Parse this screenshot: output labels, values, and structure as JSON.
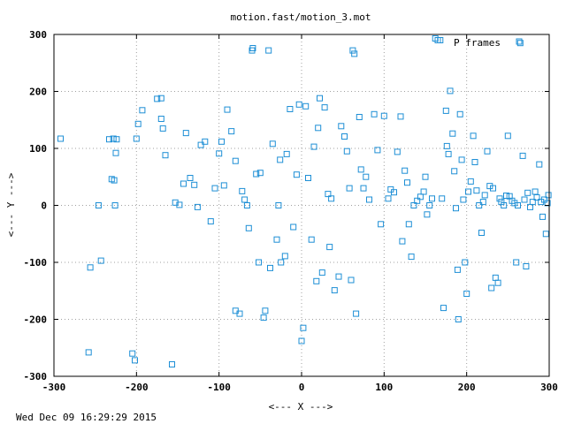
{
  "chart_data": {
    "type": "scatter",
    "title": "motion.fast/motion_3.mot",
    "xlabel": "<--- X --->",
    "ylabel": "<--- Y --->",
    "xlim": [
      -300,
      300
    ],
    "ylim": [
      -300,
      300
    ],
    "xticks": [
      -300,
      -200,
      -100,
      0,
      100,
      200,
      300
    ],
    "yticks": [
      -300,
      -200,
      -100,
      0,
      100,
      200,
      300
    ],
    "grid": true,
    "legend": "top-right",
    "marker": "open-square",
    "series": [
      {
        "name": "P frames",
        "color": "#1e8fd6",
        "points": [
          [
            -292,
            117
          ],
          [
            -258,
            -258
          ],
          [
            -256,
            -109
          ],
          [
            -246,
            0
          ],
          [
            -243,
            -97
          ],
          [
            -233,
            116
          ],
          [
            -230,
            46
          ],
          [
            -228,
            117
          ],
          [
            -227,
            44
          ],
          [
            -224,
            116
          ],
          [
            -226,
            0
          ],
          [
            -225,
            92
          ],
          [
            -205,
            -260
          ],
          [
            -202,
            -272
          ],
          [
            -200,
            117
          ],
          [
            -198,
            143
          ],
          [
            -193,
            167
          ],
          [
            -175,
            187
          ],
          [
            -170,
            188
          ],
          [
            -170,
            152
          ],
          [
            -168,
            135
          ],
          [
            -165,
            88
          ],
          [
            -157,
            -279
          ],
          [
            -153,
            5
          ],
          [
            -148,
            1
          ],
          [
            -143,
            38
          ],
          [
            -140,
            127
          ],
          [
            -135,
            48
          ],
          [
            -130,
            36
          ],
          [
            -126,
            -3
          ],
          [
            -122,
            106
          ],
          [
            -117,
            112
          ],
          [
            -110,
            -28
          ],
          [
            -105,
            30
          ],
          [
            -100,
            91
          ],
          [
            -97,
            112
          ],
          [
            -94,
            35
          ],
          [
            -90,
            168
          ],
          [
            -85,
            130
          ],
          [
            -80,
            -185
          ],
          [
            -80,
            78
          ],
          [
            -75,
            -190
          ],
          [
            -72,
            25
          ],
          [
            -69,
            10
          ],
          [
            -66,
            0
          ],
          [
            -64,
            -40
          ],
          [
            -60,
            272
          ],
          [
            -59,
            276
          ],
          [
            -55,
            55
          ],
          [
            -52,
            -100
          ],
          [
            -50,
            57
          ],
          [
            -46,
            -197
          ],
          [
            -44,
            -185
          ],
          [
            -40,
            272
          ],
          [
            -38,
            -110
          ],
          [
            -35,
            108
          ],
          [
            -30,
            -60
          ],
          [
            -28,
            0
          ],
          [
            -26,
            80
          ],
          [
            -25,
            -100
          ],
          [
            -20,
            -89
          ],
          [
            -18,
            90
          ],
          [
            -14,
            169
          ],
          [
            -10,
            -38
          ],
          [
            -6,
            54
          ],
          [
            -3,
            177
          ],
          [
            0,
            -238
          ],
          [
            2,
            -215
          ],
          [
            5,
            174
          ],
          [
            8,
            48
          ],
          [
            12,
            -60
          ],
          [
            15,
            103
          ],
          [
            18,
            -133
          ],
          [
            20,
            136
          ],
          [
            22,
            188
          ],
          [
            25,
            -118
          ],
          [
            28,
            172
          ],
          [
            32,
            20
          ],
          [
            34,
            -73
          ],
          [
            36,
            12
          ],
          [
            40,
            -149
          ],
          [
            45,
            -125
          ],
          [
            48,
            139
          ],
          [
            52,
            121
          ],
          [
            55,
            95
          ],
          [
            58,
            30
          ],
          [
            60,
            -131
          ],
          [
            62,
            272
          ],
          [
            64,
            266
          ],
          [
            66,
            -190
          ],
          [
            70,
            155
          ],
          [
            72,
            63
          ],
          [
            75,
            30
          ],
          [
            78,
            50
          ],
          [
            82,
            10
          ],
          [
            88,
            160
          ],
          [
            92,
            97
          ],
          [
            96,
            -33
          ],
          [
            100,
            157
          ],
          [
            105,
            12
          ],
          [
            108,
            28
          ],
          [
            112,
            23
          ],
          [
            116,
            94
          ],
          [
            120,
            156
          ],
          [
            122,
            -63
          ],
          [
            125,
            61
          ],
          [
            128,
            40
          ],
          [
            130,
            -33
          ],
          [
            133,
            -90
          ],
          [
            136,
            0
          ],
          [
            140,
            8
          ],
          [
            144,
            15
          ],
          [
            148,
            24
          ],
          [
            150,
            50
          ],
          [
            152,
            -16
          ],
          [
            155,
            0
          ],
          [
            158,
            12
          ],
          [
            162,
            293
          ],
          [
            165,
            290
          ],
          [
            168,
            290
          ],
          [
            170,
            12
          ],
          [
            172,
            -180
          ],
          [
            175,
            166
          ],
          [
            176,
            104
          ],
          [
            178,
            90
          ],
          [
            180,
            201
          ],
          [
            183,
            126
          ],
          [
            185,
            60
          ],
          [
            187,
            -5
          ],
          [
            189,
            -113
          ],
          [
            190,
            -200
          ],
          [
            192,
            160
          ],
          [
            194,
            80
          ],
          [
            196,
            10
          ],
          [
            198,
            -100
          ],
          [
            200,
            -155
          ],
          [
            202,
            24
          ],
          [
            205,
            42
          ],
          [
            208,
            122
          ],
          [
            210,
            76
          ],
          [
            212,
            26
          ],
          [
            215,
            0
          ],
          [
            218,
            -48
          ],
          [
            220,
            6
          ],
          [
            222,
            18
          ],
          [
            225,
            95
          ],
          [
            228,
            34
          ],
          [
            230,
            -145
          ],
          [
            232,
            30
          ],
          [
            235,
            -127
          ],
          [
            238,
            -136
          ],
          [
            240,
            12
          ],
          [
            242,
            6
          ],
          [
            245,
            0
          ],
          [
            248,
            17
          ],
          [
            250,
            122
          ],
          [
            252,
            16
          ],
          [
            255,
            8
          ],
          [
            258,
            4
          ],
          [
            260,
            -100
          ],
          [
            262,
            0
          ],
          [
            265,
            285
          ],
          [
            268,
            87
          ],
          [
            270,
            10
          ],
          [
            272,
            -107
          ],
          [
            274,
            22
          ],
          [
            277,
            -3
          ],
          [
            280,
            6
          ],
          [
            283,
            24
          ],
          [
            285,
            14
          ],
          [
            288,
            72
          ],
          [
            290,
            6
          ],
          [
            292,
            -20
          ],
          [
            294,
            10
          ],
          [
            296,
            -50
          ],
          [
            298,
            4
          ],
          [
            299,
            18
          ]
        ]
      }
    ],
    "timestamp": "Wed Dec 09 16:29:29 2015"
  }
}
